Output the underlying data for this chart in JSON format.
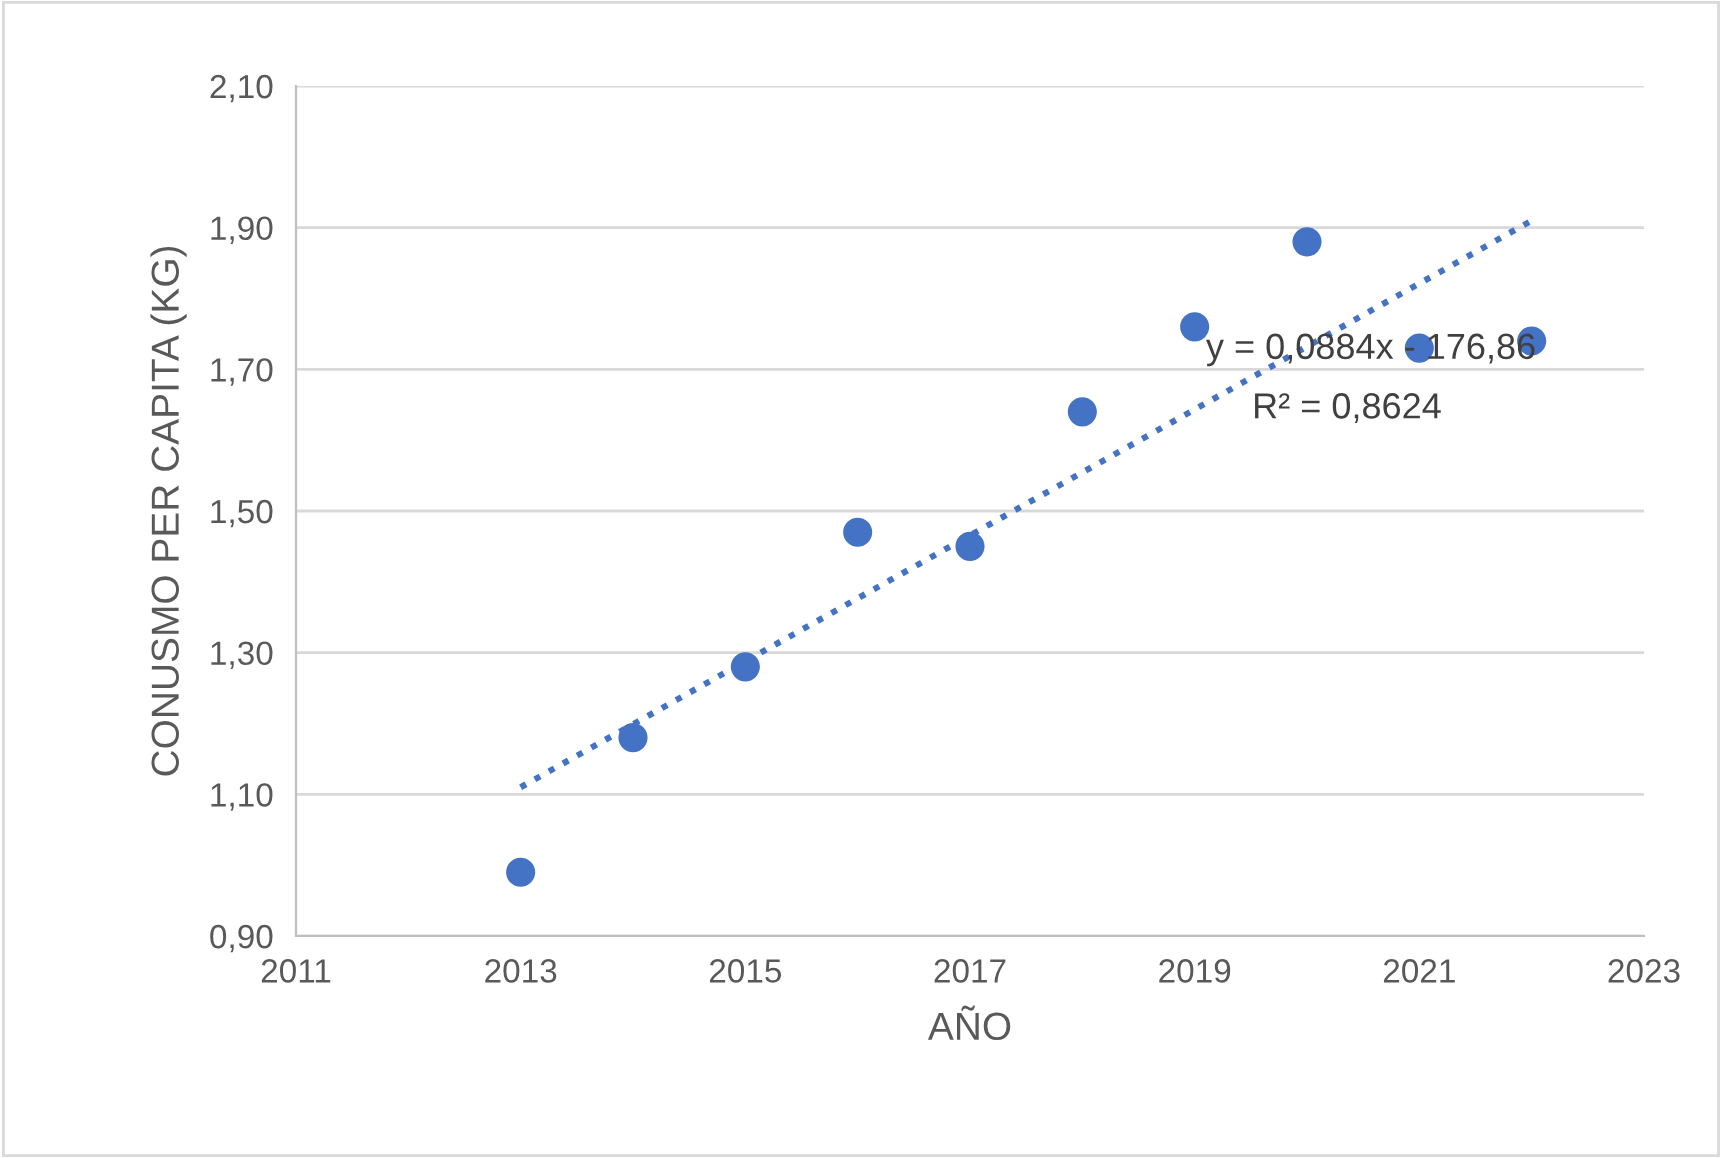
{
  "chart_data": {
    "type": "scatter",
    "xlabel": "AÑO",
    "ylabel": "CONUSMO PER CAPITA (KG)",
    "x": [
      2013,
      2014,
      2015,
      2016,
      2017,
      2018,
      2019,
      2020,
      2021,
      2022
    ],
    "series": [
      {
        "color": "#4472c4",
        "marker": "circle",
        "values": [
          0.99,
          1.18,
          1.28,
          1.47,
          1.45,
          1.64,
          1.76,
          1.88,
          1.73,
          1.74
        ]
      },
      {
        "type": "line",
        "color": "#4472c4",
        "line_style": "dotted",
        "marker": "none",
        "x": [
          2013,
          2022
        ],
        "values": [
          1.11,
          1.91
        ]
      }
    ],
    "xlim": [
      2011,
      2023
    ],
    "xticks": [
      2011,
      2013,
      2015,
      2017,
      2019,
      2021,
      2023
    ],
    "ylim": [
      0.9,
      2.1
    ],
    "yticks": [
      {
        "value": 0.9,
        "label": "0,90"
      },
      {
        "value": 1.1,
        "label": "1,10"
      },
      {
        "value": 1.3,
        "label": "1,30"
      },
      {
        "value": 1.5,
        "label": "1,50"
      },
      {
        "value": 1.7,
        "label": "1,70"
      },
      {
        "value": 1.9,
        "label": "1,90"
      },
      {
        "value": 2.1,
        "label": "2,10"
      }
    ],
    "grid": "y",
    "annotations": [
      "y = 0,0884x - 176,86",
      "R² = 0,8624"
    ]
  }
}
